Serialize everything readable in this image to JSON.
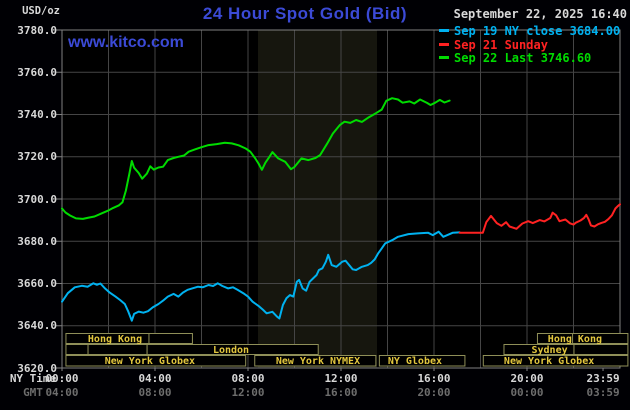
{
  "header": {
    "unit_label": "USD/oz",
    "title": "24 Hour Spot Gold (Bid)",
    "datetime": "September 22, 2025 16:40",
    "watermark": "www.kitco.com",
    "legend": [
      {
        "label": "Sep 19 NY close 3684.00",
        "color": "#00b2f0"
      },
      {
        "label": "Sep 21 Sunday",
        "color": "#ff2222"
      },
      {
        "label": "Sep 22 Last 3746.60",
        "color": "#00dc00"
      }
    ]
  },
  "footer": {
    "ny_time_label": "NY Time",
    "gmt_label": "GMT"
  },
  "colors": {
    "background": "#000004",
    "plot_background": "#000000",
    "nymex_band": "#16160e",
    "grid": "#454545",
    "frame": "#808080",
    "session_border": "#8f8f58",
    "session_text": "#e3c73e",
    "title_blue": "#3b4ad6",
    "axis_text": "#d8d8d8",
    "axis_text_dim": "#6d6d6d",
    "series_sep19": "#00b2f0",
    "series_sep21": "#ff2222",
    "series_sep22": "#00dc00"
  },
  "chart_data": {
    "type": "line",
    "title": "24 Hour Spot Gold (Bid)",
    "ylabel": "USD/oz",
    "ylim": [
      3620,
      3780
    ],
    "grid": true,
    "legend_position": "top-right",
    "y_ticks": [
      "3780.0",
      "3760.0",
      "3740.0",
      "3720.0",
      "3700.0",
      "3680.0",
      "3660.0",
      "3640.0",
      "3620.0"
    ],
    "x_ticks": [
      {
        "t": 0,
        "ny": "00:00",
        "gmt": "04:00"
      },
      {
        "t": 4,
        "ny": "04:00",
        "gmt": "08:00"
      },
      {
        "t": 8,
        "ny": "08:00",
        "gmt": "12:00"
      },
      {
        "t": 12,
        "ny": "12:00",
        "gmt": "16:00"
      },
      {
        "t": 16,
        "ny": "16:00",
        "gmt": "20:00"
      },
      {
        "t": 20,
        "ny": "20:00",
        "gmt": "00:00"
      },
      {
        "t": 23.27,
        "ny": "23:59",
        "gmt": "03:59"
      }
    ],
    "grid_hours": [
      2,
      4,
      6,
      8,
      10,
      12,
      14,
      16,
      18,
      20,
      22
    ],
    "nymex_band_hours": [
      8.43,
      13.55
    ],
    "series": [
      {
        "name": "Sep 19 NY close",
        "close": 3684.0,
        "color": "#00b2f0",
        "points": [
          [
            0,
            3651.4
          ],
          [
            0.25,
            3655.4
          ],
          [
            0.55,
            3658.2
          ],
          [
            0.85,
            3658.9
          ],
          [
            1.1,
            3658.5
          ],
          [
            1.35,
            3660.1
          ],
          [
            1.5,
            3659.4
          ],
          [
            1.65,
            3660
          ],
          [
            1.85,
            3657.7
          ],
          [
            2.05,
            3655.7
          ],
          [
            2.3,
            3653.8
          ],
          [
            2.5,
            3652.2
          ],
          [
            2.7,
            3650.3
          ],
          [
            2.85,
            3646.7
          ],
          [
            3,
            3642.4
          ],
          [
            3.1,
            3645.6
          ],
          [
            3.3,
            3646.7
          ],
          [
            3.5,
            3646.2
          ],
          [
            3.7,
            3646.9
          ],
          [
            3.9,
            3648.7
          ],
          [
            4.15,
            3650.3
          ],
          [
            4.35,
            3651.9
          ],
          [
            4.55,
            3653.8
          ],
          [
            4.8,
            3655.1
          ],
          [
            5,
            3653.8
          ],
          [
            5.2,
            3655.7
          ],
          [
            5.4,
            3657
          ],
          [
            5.65,
            3657.8
          ],
          [
            5.85,
            3658.5
          ],
          [
            6.05,
            3658.2
          ],
          [
            6.3,
            3659.3
          ],
          [
            6.5,
            3658.8
          ],
          [
            6.7,
            3660.1
          ],
          [
            6.9,
            3658.8
          ],
          [
            7.15,
            3657.7
          ],
          [
            7.35,
            3658.2
          ],
          [
            7.55,
            3657
          ],
          [
            7.8,
            3655.4
          ],
          [
            8,
            3653.8
          ],
          [
            8.2,
            3651.4
          ],
          [
            8.45,
            3649.4
          ],
          [
            8.65,
            3647.5
          ],
          [
            8.8,
            3645.9
          ],
          [
            9.05,
            3646.6
          ],
          [
            9.25,
            3644.3
          ],
          [
            9.35,
            3643.5
          ],
          [
            9.5,
            3649.8
          ],
          [
            9.65,
            3653
          ],
          [
            9.8,
            3654.5
          ],
          [
            9.95,
            3653.8
          ],
          [
            10.1,
            3660.8
          ],
          [
            10.2,
            3661.7
          ],
          [
            10.35,
            3657.7
          ],
          [
            10.5,
            3656.6
          ],
          [
            10.65,
            3660.8
          ],
          [
            10.8,
            3662.4
          ],
          [
            10.95,
            3664
          ],
          [
            11.05,
            3666.4
          ],
          [
            11.2,
            3667.2
          ],
          [
            11.35,
            3670.3
          ],
          [
            11.45,
            3673.6
          ],
          [
            11.6,
            3668.7
          ],
          [
            11.8,
            3667.9
          ],
          [
            12.05,
            3670.3
          ],
          [
            12.2,
            3670.8
          ],
          [
            12.5,
            3666.7
          ],
          [
            12.65,
            3666.4
          ],
          [
            12.9,
            3667.9
          ],
          [
            13.15,
            3668.7
          ],
          [
            13.3,
            3669.8
          ],
          [
            13.45,
            3671.4
          ],
          [
            13.6,
            3674.3
          ],
          [
            13.75,
            3676.6
          ],
          [
            13.9,
            3679
          ],
          [
            14.2,
            3680.5
          ],
          [
            14.45,
            3682.1
          ],
          [
            14.9,
            3683.4
          ],
          [
            15.3,
            3683.7
          ],
          [
            15.75,
            3684
          ],
          [
            15.95,
            3682.9
          ],
          [
            16.2,
            3684.5
          ],
          [
            16.4,
            3682.1
          ],
          [
            16.8,
            3684
          ],
          [
            17.1,
            3684.2
          ]
        ]
      },
      {
        "name": "Sep 21 Sunday",
        "color": "#ff2222",
        "points": [
          [
            17.1,
            3684
          ],
          [
            18.1,
            3684
          ],
          [
            18.25,
            3689
          ],
          [
            18.45,
            3692
          ],
          [
            18.7,
            3688.6
          ],
          [
            18.9,
            3687.3
          ],
          [
            19.1,
            3689
          ],
          [
            19.25,
            3687
          ],
          [
            19.55,
            3685.9
          ],
          [
            19.8,
            3688.4
          ],
          [
            20.05,
            3689.5
          ],
          [
            20.25,
            3688.6
          ],
          [
            20.55,
            3690
          ],
          [
            20.75,
            3689.4
          ],
          [
            21,
            3691
          ],
          [
            21.1,
            3693.5
          ],
          [
            21.25,
            3692.3
          ],
          [
            21.4,
            3689.5
          ],
          [
            21.65,
            3690.3
          ],
          [
            21.85,
            3688.5
          ],
          [
            22,
            3687.9
          ],
          [
            22.1,
            3688.8
          ],
          [
            22.3,
            3689.8
          ],
          [
            22.45,
            3691
          ],
          [
            22.55,
            3692.5
          ],
          [
            22.65,
            3690.4
          ],
          [
            22.75,
            3687.5
          ],
          [
            22.9,
            3687
          ],
          [
            23.05,
            3688
          ],
          [
            23.2,
            3688.7
          ],
          [
            23.35,
            3689.2
          ],
          [
            23.5,
            3690.5
          ],
          [
            23.65,
            3692.3
          ],
          [
            23.8,
            3695.5
          ],
          [
            23.9,
            3696.6
          ],
          [
            24,
            3697.5
          ]
        ]
      },
      {
        "name": "Sep 22 Last",
        "last": 3746.6,
        "color": "#00dc00",
        "points": [
          [
            0,
            3695.5
          ],
          [
            0.15,
            3693.6
          ],
          [
            0.35,
            3692.2
          ],
          [
            0.6,
            3690.8
          ],
          [
            0.9,
            3690.6
          ],
          [
            1.15,
            3691.2
          ],
          [
            1.4,
            3691.7
          ],
          [
            1.7,
            3693.2
          ],
          [
            2,
            3694.6
          ],
          [
            2.2,
            3695.8
          ],
          [
            2.45,
            3697
          ],
          [
            2.6,
            3698.5
          ],
          [
            2.75,
            3704
          ],
          [
            2.9,
            3712
          ],
          [
            3,
            3718
          ],
          [
            3.1,
            3714.8
          ],
          [
            3.3,
            3712.3
          ],
          [
            3.45,
            3709.6
          ],
          [
            3.65,
            3712
          ],
          [
            3.8,
            3715.5
          ],
          [
            3.95,
            3713.9
          ],
          [
            4.15,
            3714.9
          ],
          [
            4.35,
            3715.3
          ],
          [
            4.55,
            3718.4
          ],
          [
            4.8,
            3719.4
          ],
          [
            5,
            3720
          ],
          [
            5.25,
            3720.6
          ],
          [
            5.45,
            3722.4
          ],
          [
            5.7,
            3723.4
          ],
          [
            6,
            3724.5
          ],
          [
            6.3,
            3725.5
          ],
          [
            6.65,
            3726
          ],
          [
            7,
            3726.6
          ],
          [
            7.3,
            3726.3
          ],
          [
            7.6,
            3725.4
          ],
          [
            7.9,
            3723.9
          ],
          [
            8.1,
            3722.4
          ],
          [
            8.3,
            3719.4
          ],
          [
            8.45,
            3716.8
          ],
          [
            8.6,
            3713.8
          ],
          [
            8.75,
            3717.2
          ],
          [
            8.9,
            3719.6
          ],
          [
            9.05,
            3722.2
          ],
          [
            9.3,
            3719.2
          ],
          [
            9.6,
            3717.6
          ],
          [
            9.85,
            3714.1
          ],
          [
            10,
            3715.2
          ],
          [
            10.3,
            3719.2
          ],
          [
            10.6,
            3718.4
          ],
          [
            10.9,
            3719.4
          ],
          [
            11.1,
            3720.8
          ],
          [
            11.4,
            3726.2
          ],
          [
            11.65,
            3731
          ],
          [
            11.95,
            3735
          ],
          [
            12.15,
            3736.6
          ],
          [
            12.4,
            3736
          ],
          [
            12.65,
            3737.4
          ],
          [
            12.9,
            3736.5
          ],
          [
            13.2,
            3738.7
          ],
          [
            13.5,
            3740.6
          ],
          [
            13.75,
            3742.3
          ],
          [
            13.95,
            3746.5
          ],
          [
            14.2,
            3747.7
          ],
          [
            14.45,
            3747.1
          ],
          [
            14.65,
            3745.6
          ],
          [
            14.95,
            3746.2
          ],
          [
            15.15,
            3745.2
          ],
          [
            15.4,
            3747.1
          ],
          [
            15.7,
            3745.5
          ],
          [
            15.85,
            3744.5
          ],
          [
            16.05,
            3745.6
          ],
          [
            16.25,
            3746.9
          ],
          [
            16.45,
            3745.7
          ],
          [
            16.67,
            3746.6
          ]
        ]
      }
    ],
    "sessions": [
      {
        "row": 1,
        "t1": 0.17,
        "t2": 5.61,
        "label": "Hong Kong",
        "label_t": 2.28,
        "div": [
          3.74
        ]
      },
      {
        "row": 1,
        "t1": 20.45,
        "t2": 24.34,
        "label": "Hong Kong",
        "label_t": 22.06,
        "div": [
          21.96
        ]
      },
      {
        "row": 2,
        "t1": 0.17,
        "t2": 1.12,
        "label": "",
        "label_t": null,
        "div": []
      },
      {
        "row": 2,
        "t1": 1.12,
        "t2": 3.66,
        "label": "",
        "label_t": null,
        "div": []
      },
      {
        "row": 2,
        "t1": 3.66,
        "t2": 11.02,
        "label": "London",
        "label_t": 7.27,
        "div": []
      },
      {
        "row": 2,
        "t1": 19.01,
        "t2": 22.02,
        "label": "Sydney",
        "label_t": 20.97,
        "div": []
      },
      {
        "row": 2,
        "t1": 22.02,
        "t2": 24.34,
        "label": "",
        "label_t": null,
        "div": []
      },
      {
        "row": 3,
        "t1": 0.17,
        "t2": 7.9,
        "label": "New York Globex",
        "label_t": 3.78,
        "div": []
      },
      {
        "row": 3,
        "t1": 8.29,
        "t2": 13.5,
        "label": "New York NYMEX",
        "label_t": 11.01,
        "div": []
      },
      {
        "row": 3,
        "t1": 13.65,
        "t2": 17.33,
        "label": "NY Globex",
        "label_t": 15.18,
        "div": []
      },
      {
        "row": 3,
        "t1": 18.12,
        "t2": 24.34,
        "label": "New York Globex",
        "label_t": 20.95,
        "div": []
      }
    ]
  }
}
